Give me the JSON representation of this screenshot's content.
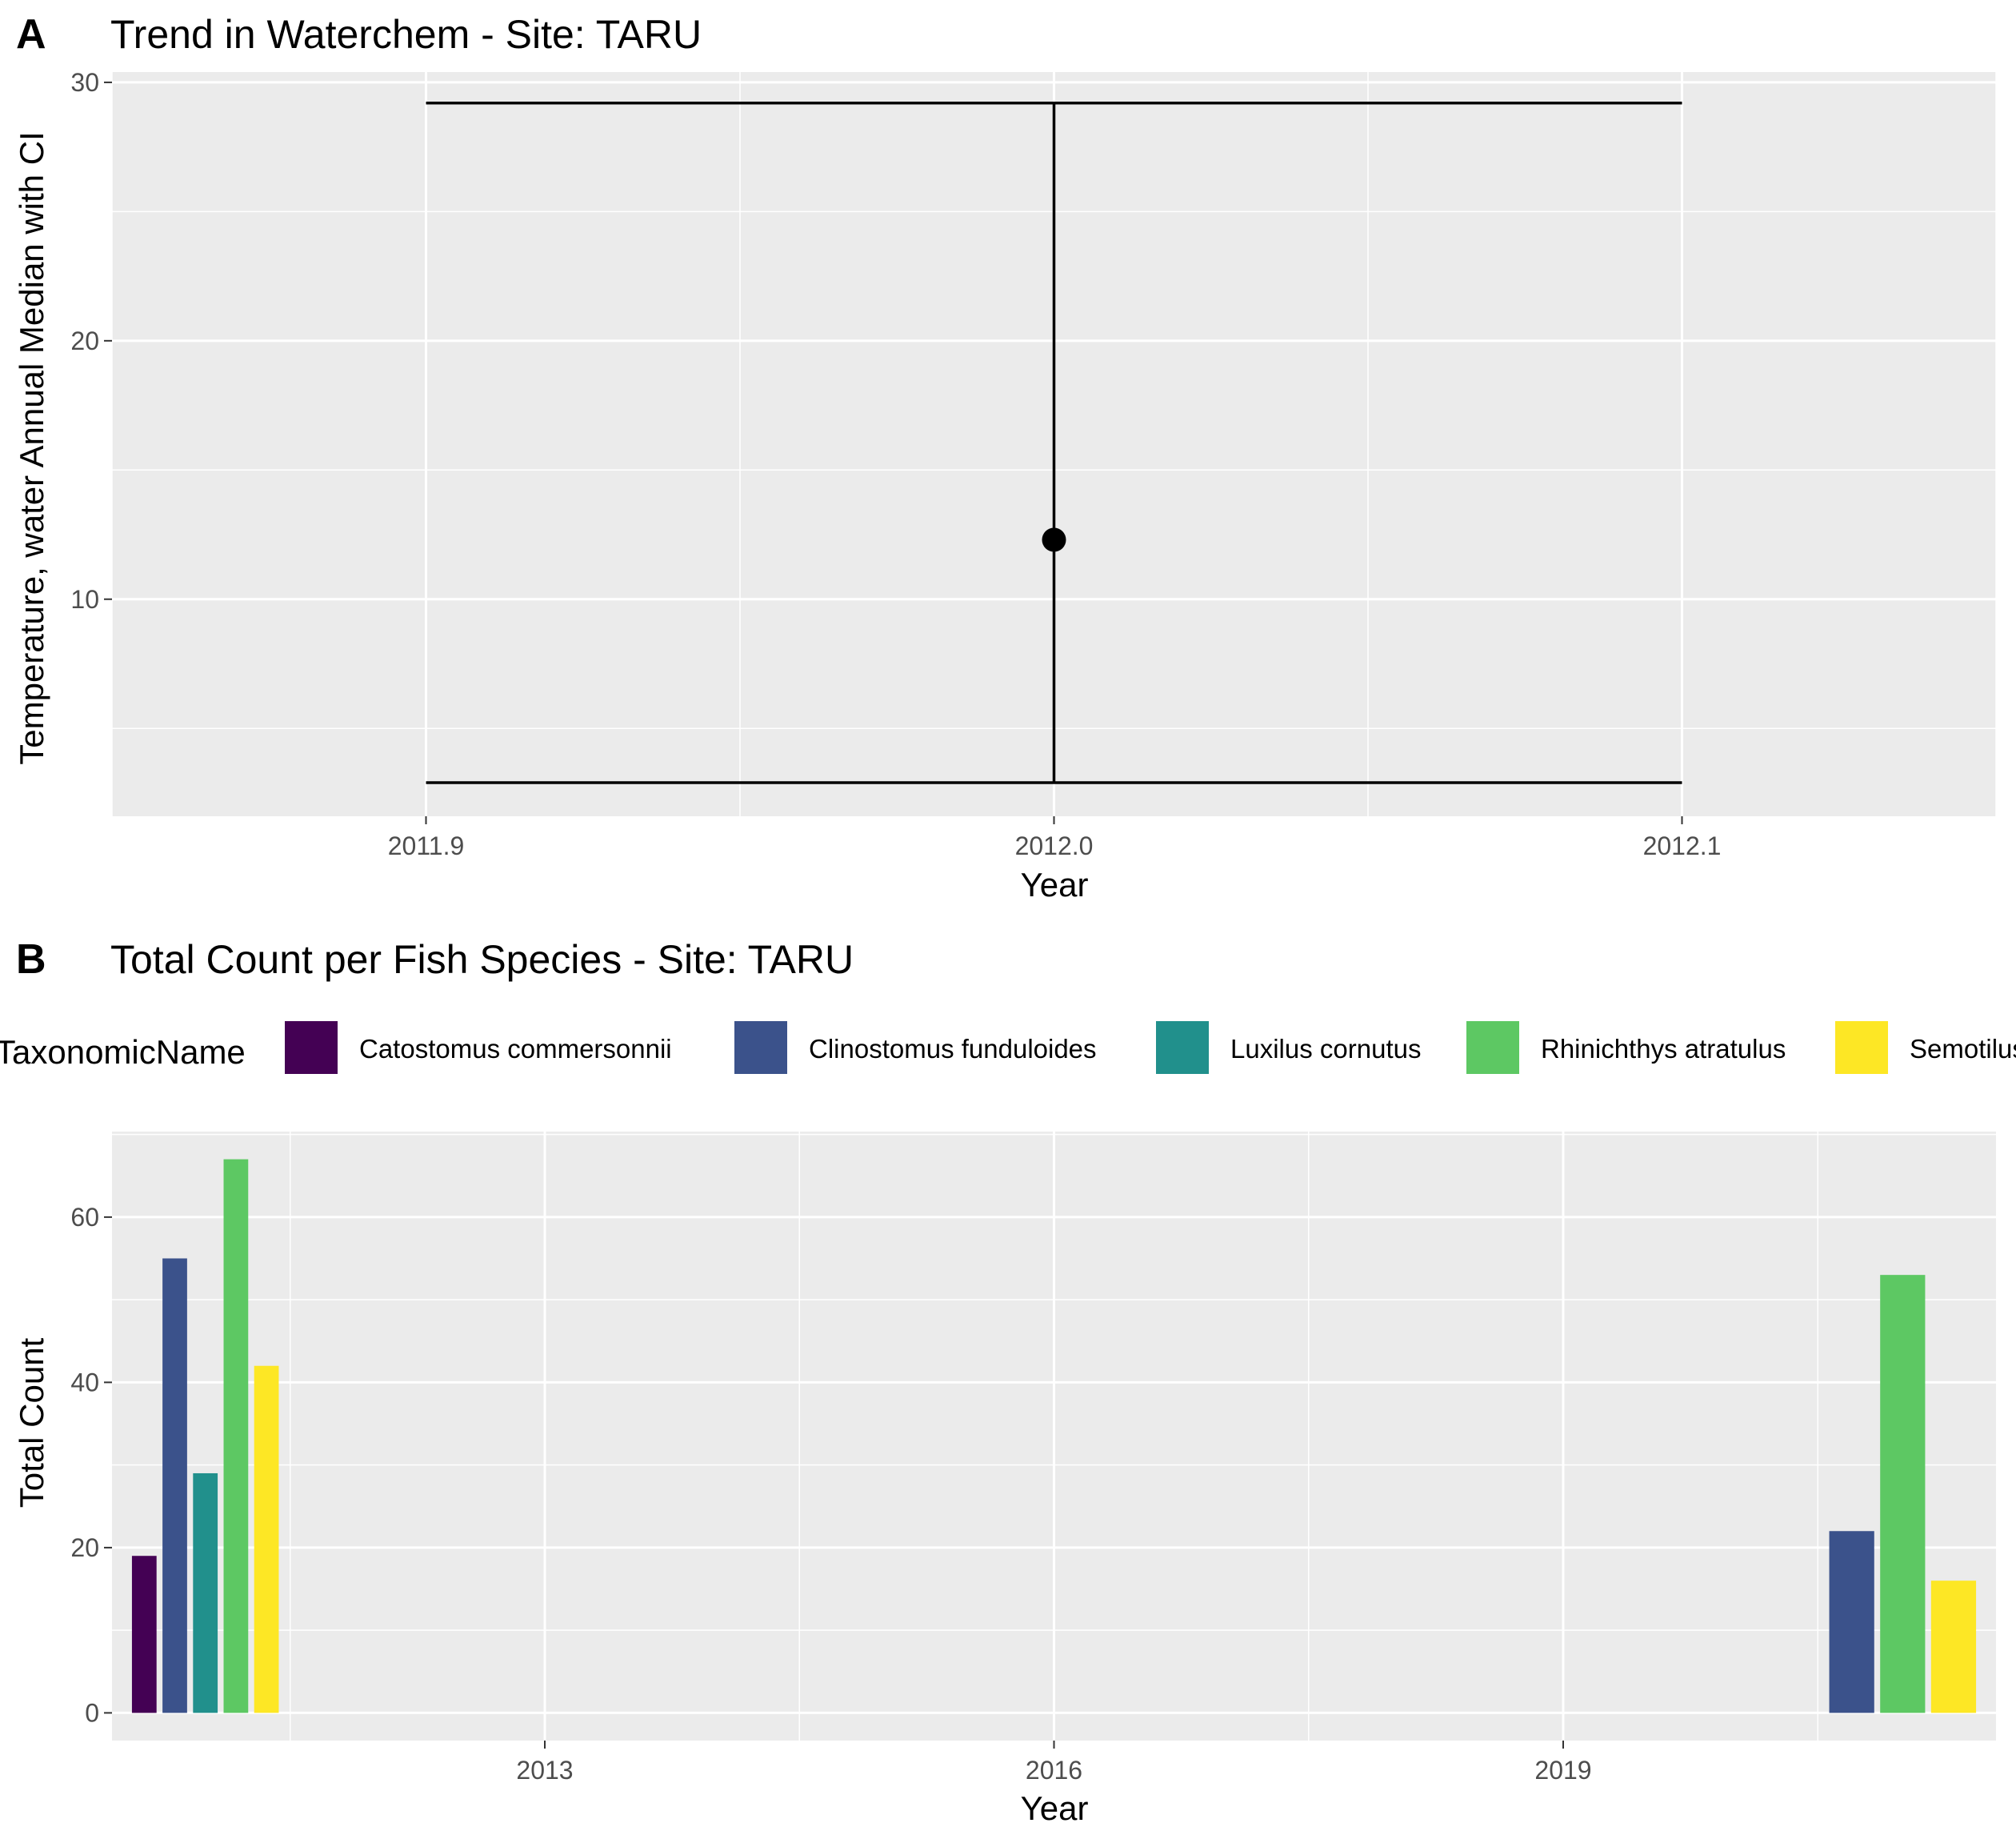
{
  "panel_a": {
    "tag": "A",
    "chart_data": {
      "type": "scatter",
      "title": "Trend in Waterchem - Site: TARU",
      "xlabel": "Year",
      "ylabel": "Temperature, water Annual Median with CI",
      "x_ticks": [
        "2011.9",
        "2012.0",
        "2012.1"
      ],
      "y_ticks": [
        "10",
        "20",
        "30"
      ],
      "xlim": [
        2011.85,
        2012.15
      ],
      "ylim": [
        1.6,
        30.4
      ],
      "grid": true,
      "points": [
        {
          "x": 2012.0,
          "y": 12.3,
          "ci_low": 2.9,
          "ci_high": 29.2
        }
      ]
    }
  },
  "panel_b": {
    "tag": "B",
    "chart_data": {
      "type": "bar",
      "title": "Total Count per Fish Species - Site: TARU",
      "xlabel": "Year",
      "ylabel": "Total Count",
      "x_ticks": [
        "2013",
        "2016",
        "2019"
      ],
      "y_ticks": [
        "0",
        "20",
        "40",
        "60"
      ],
      "xlim": [
        2010.45,
        2021.55
      ],
      "ylim": [
        -3.35,
        70.35
      ],
      "grid": true,
      "legend_title": "TaxonomicName",
      "legend_position": "top",
      "series": [
        {
          "name": "Catostomus commersonnii",
          "color": "#440154"
        },
        {
          "name": "Clinostomus funduloides",
          "color": "#3B528B"
        },
        {
          "name": "Luxilus cornutus",
          "color": "#21908C"
        },
        {
          "name": "Rhinichthys atratulus",
          "color": "#5DC863"
        },
        {
          "name": "Semotilus",
          "color": "#FDE725"
        }
      ],
      "groups": [
        {
          "year": 2011,
          "values": [
            19,
            55,
            29,
            67,
            42
          ]
        },
        {
          "year": 2021,
          "values": [
            null,
            22,
            null,
            53,
            16
          ]
        }
      ]
    }
  }
}
